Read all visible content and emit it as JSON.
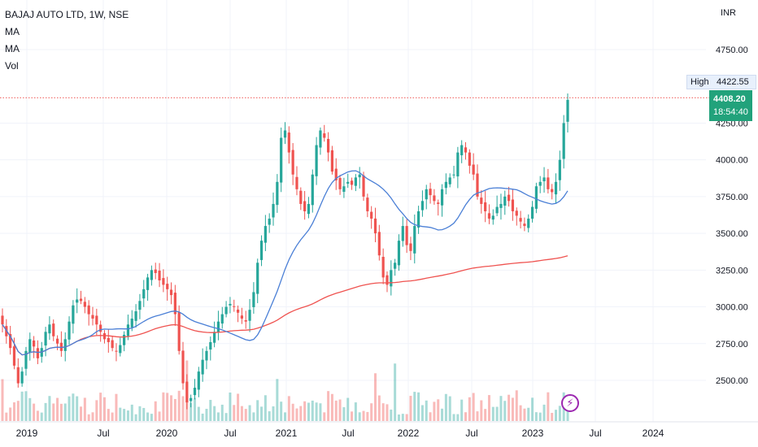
{
  "legend": {
    "title": "BAJAJ AUTO LTD, 1W, NSE",
    "ma1": "MA",
    "ma2": "MA",
    "vol": "Vol"
  },
  "currency": "INR",
  "high": {
    "label": "High",
    "value": "4422.55"
  },
  "last_price": {
    "value": "4408.20",
    "countdown": "18:54:40"
  },
  "colors": {
    "up": "#26a69a",
    "down": "#ef5350",
    "ma_short": "#4a7fd6",
    "ma_long": "#ef5350",
    "price_tag": "#22a27b",
    "high_line": "#ef5350"
  },
  "icons": {
    "flash": "lightning-icon"
  },
  "chart_data": {
    "type": "candlestick",
    "symbol": "BAJAJ AUTO LTD",
    "interval": "1W",
    "exchange": "NSE",
    "ylim": [
      2350,
      4950
    ],
    "y_ticks": [
      "4750.00",
      "4250.00",
      "4000.00",
      "3750.00",
      "3500.00",
      "3250.00",
      "3000.00",
      "2750.00",
      "2500.00"
    ],
    "x_ticks": [
      "2019",
      "Jul",
      "2020",
      "Jul",
      "2021",
      "Jul",
      "2022",
      "Jul",
      "2023",
      "Jul",
      "2024"
    ],
    "high_line": 4422.55,
    "last_close": 4408.2,
    "closes": [
      2880,
      2800,
      2720,
      2600,
      2480,
      2560,
      2700,
      2780,
      2730,
      2650,
      2720,
      2830,
      2880,
      2800,
      2750,
      2700,
      2780,
      2900,
      3010,
      3050,
      3040,
      3000,
      2950,
      2920,
      2880,
      2830,
      2780,
      2760,
      2720,
      2700,
      2740,
      2810,
      2880,
      2920,
      2970,
      3040,
      3120,
      3200,
      3250,
      3230,
      3180,
      3150,
      3120,
      3080,
      2950,
      2700,
      2480,
      2350,
      2380,
      2450,
      2560,
      2640,
      2700,
      2760,
      2830,
      2900,
      2950,
      3000,
      3020,
      3000,
      2960,
      2920,
      2900,
      2980,
      3100,
      3300,
      3450,
      3550,
      3600,
      3700,
      3850,
      4150,
      4200,
      4050,
      3900,
      3800,
      3700,
      3650,
      3700,
      3900,
      4100,
      4200,
      4150,
      4050,
      3920,
      3860,
      3800,
      3820,
      3850,
      3830,
      3880,
      3900,
      3750,
      3650,
      3600,
      3500,
      3350,
      3200,
      3150,
      3250,
      3300,
      3450,
      3550,
      3420,
      3380,
      3550,
      3650,
      3720,
      3800,
      3760,
      3720,
      3700,
      3800,
      3850,
      3880,
      3900,
      4050,
      4100,
      4050,
      3960,
      3900,
      3750,
      3700,
      3650,
      3600,
      3620,
      3680,
      3700,
      3750,
      3720,
      3650,
      3620,
      3580,
      3550,
      3600,
      3680,
      3820,
      3850,
      3880,
      3800,
      3780,
      3850,
      4000,
      4250,
      4408
    ]
  }
}
